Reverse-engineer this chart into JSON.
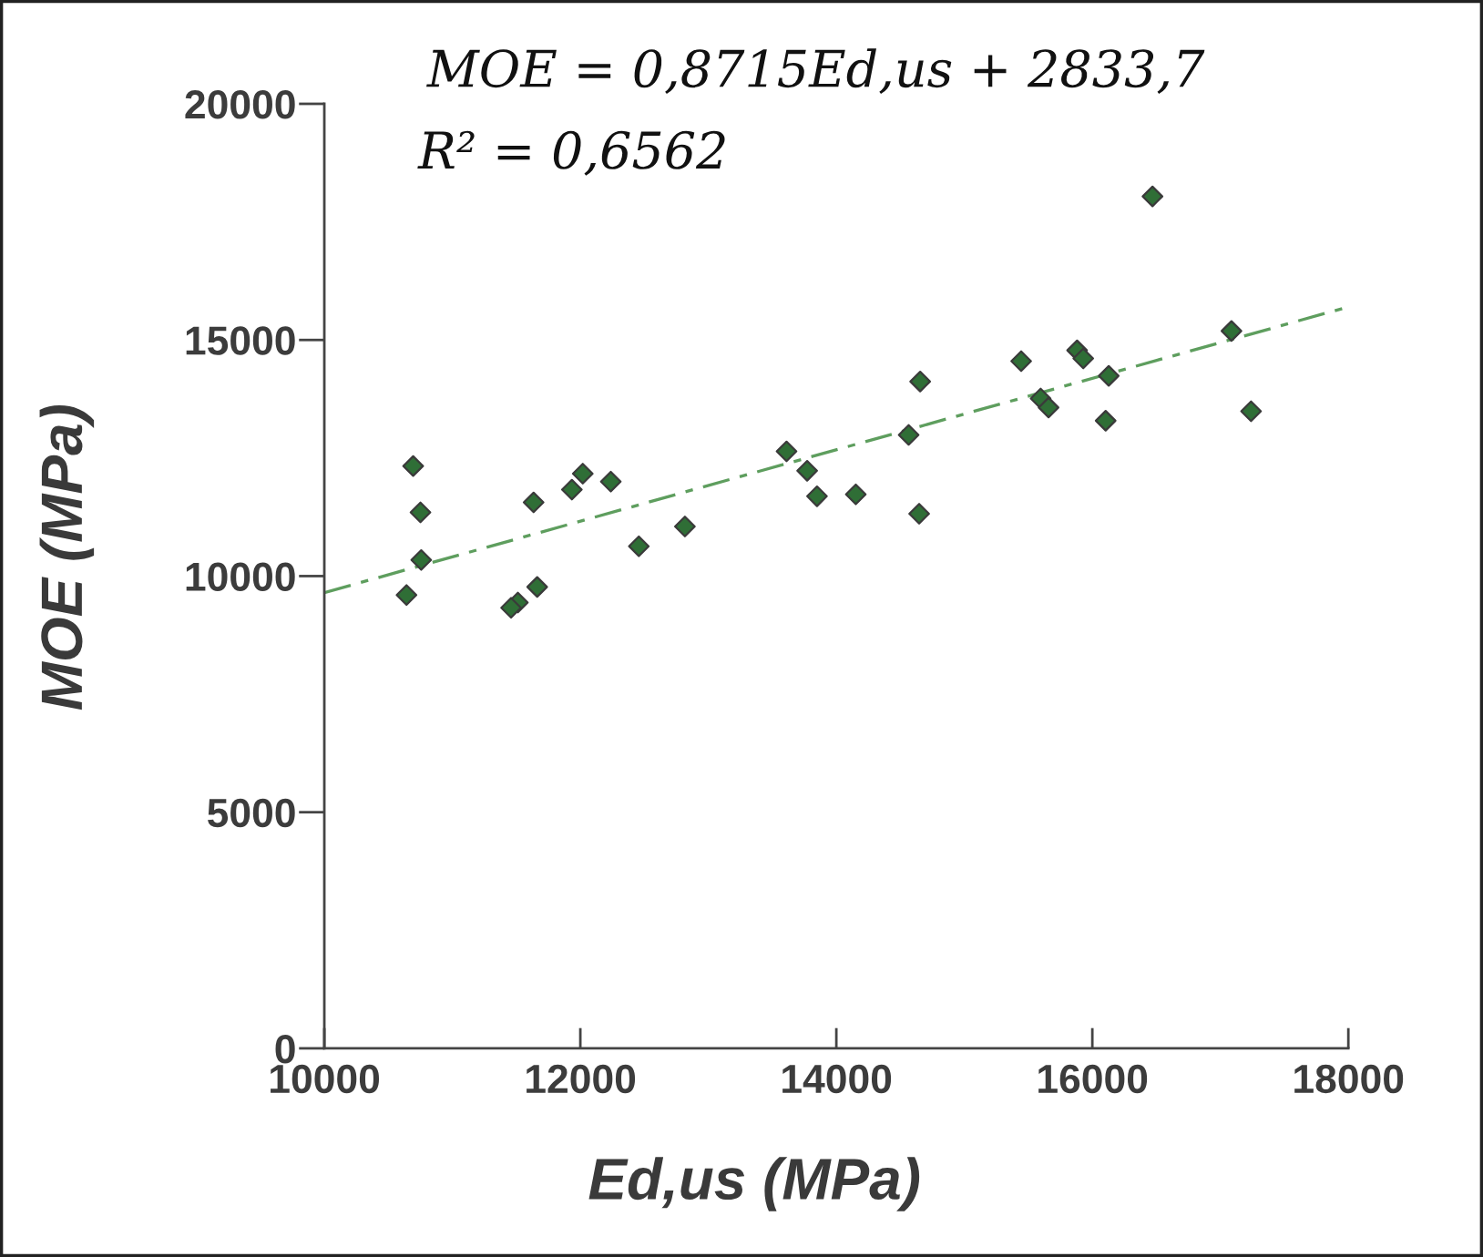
{
  "chart_data": {
    "type": "scatter",
    "xlabel": "Ed,us (MPa)",
    "ylabel": "MOE (MPa)",
    "annotations": [
      "MOE = 0,8715Ed,us + 2833,7",
      "R² = 0,6562"
    ],
    "xlim": [
      10000,
      18000
    ],
    "xticks": [
      10000,
      12000,
      14000,
      16000,
      18000
    ],
    "ylim": [
      0,
      20000
    ],
    "yticks": [
      0,
      5000,
      10000,
      15000,
      20000
    ],
    "grid": false,
    "series": [
      {
        "color": "#2f6e36",
        "marker": "diamond",
        "x": [
          10694,
          10751,
          10757,
          10642,
          11635,
          11934,
          12019,
          12238,
          12457,
          12817,
          11663,
          11512,
          11459,
          13611,
          13772,
          13849,
          14152,
          14647,
          14565,
          14655,
          15444,
          15596,
          15658,
          15881,
          15929,
          16128,
          16104,
          16470,
          17087,
          17240
        ],
        "values": [
          12330,
          11350,
          10340,
          9600,
          11560,
          11830,
          12170,
          12000,
          10630,
          11050,
          9770,
          9440,
          9330,
          12640,
          12230,
          11690,
          11730,
          11320,
          12990,
          14120,
          14550,
          13760,
          13570,
          14780,
          14610,
          14240,
          13290,
          18040,
          15190,
          13490
        ]
      },
      {
        "type": "line",
        "color": "#5e9e5e",
        "line_style": "dashed",
        "marker": "none",
        "x": [
          10000,
          18000
        ],
        "values": [
          9650,
          15700
        ]
      }
    ]
  }
}
